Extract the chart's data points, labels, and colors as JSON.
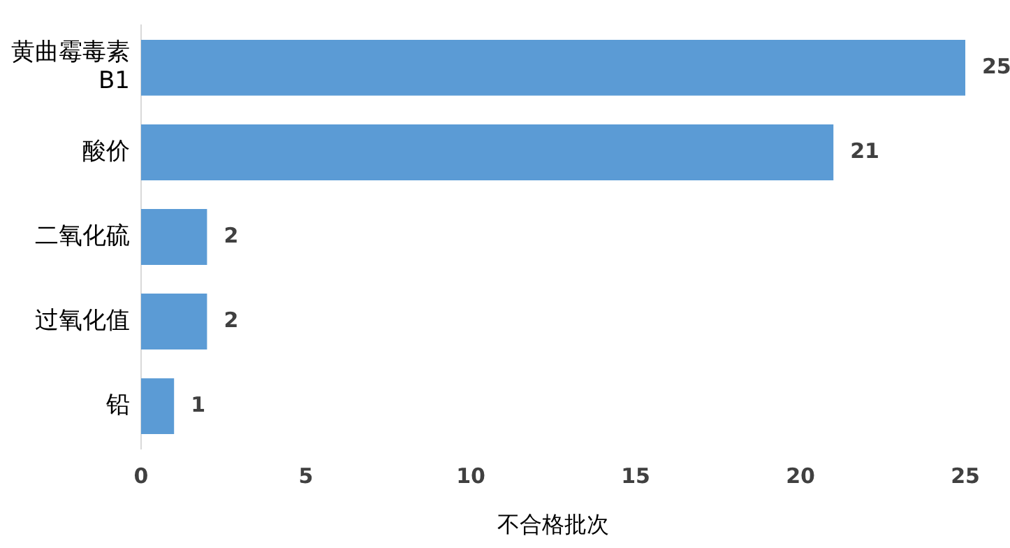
{
  "chart_data": {
    "type": "bar",
    "orientation": "horizontal",
    "xlabel": "不合格批次",
    "categories": [
      "黄曲霉毒素B1",
      "酸价",
      "二氧化硫",
      "过氧化值",
      "铅"
    ],
    "values": [
      25,
      21,
      2,
      2,
      1
    ],
    "color": "#5b9bd5",
    "xlim": [
      0,
      25
    ],
    "xticks": [
      0,
      5,
      10,
      15,
      20,
      25
    ],
    "grid": false,
    "data_labels": true
  }
}
